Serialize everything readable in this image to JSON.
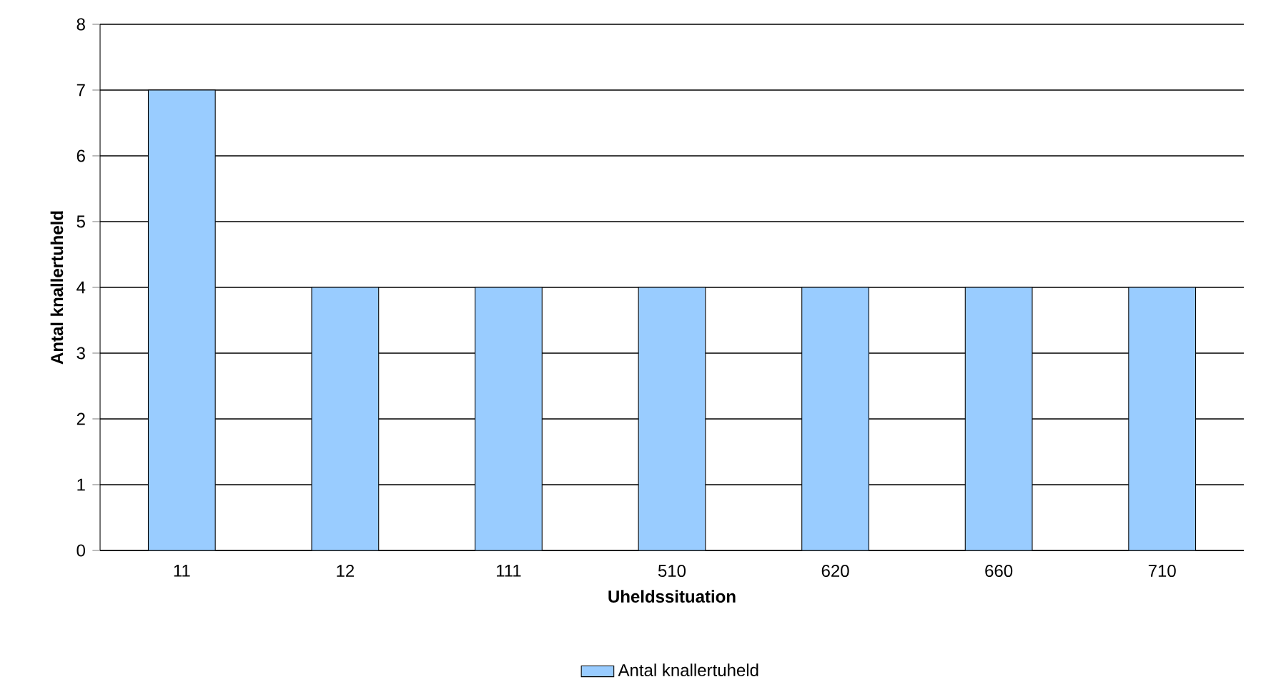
{
  "chart_data": {
    "type": "bar",
    "xlabel": "Uheldssituation",
    "ylabel": "Antal knallertuheld",
    "categories": [
      "11",
      "12",
      "111",
      "510",
      "620",
      "660",
      "710"
    ],
    "series": [
      {
        "name": "Antal knallertuheld",
        "color": "#99ccff",
        "values": [
          7,
          4,
          4,
          4,
          4,
          4,
          4
        ]
      }
    ],
    "ylim": [
      0,
      8
    ],
    "yticks": [
      0,
      1,
      2,
      3,
      4,
      5,
      6,
      7,
      8
    ],
    "grid": "y",
    "legend": "bottom"
  }
}
